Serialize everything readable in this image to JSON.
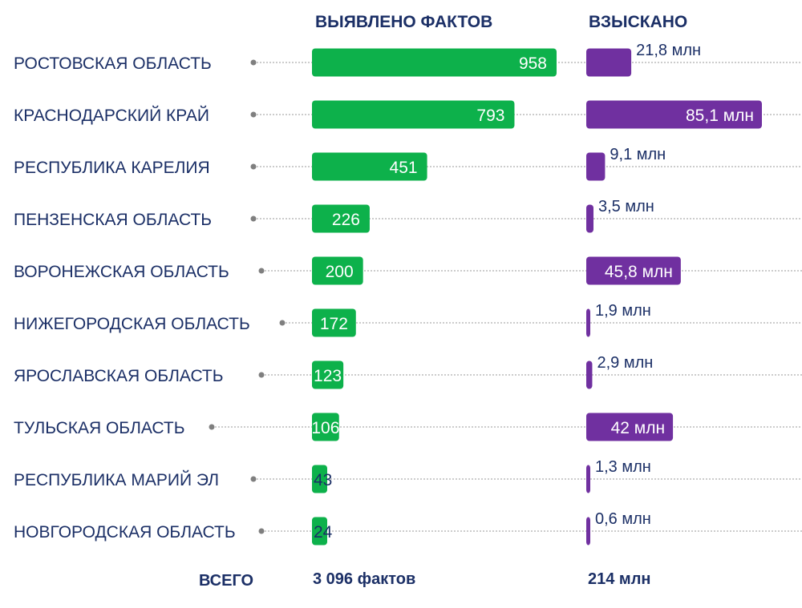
{
  "chart_data": {
    "type": "bar",
    "headers": {
      "facts": "ВЫЯВЛЕНО ФАКТОВ",
      "recovered": "ВЗЫСКАНО"
    },
    "categories": [
      "РОСТОВСКАЯ ОБЛАСТЬ",
      "КРАСНОДАРСКИЙ КРАЙ",
      "РЕСПУБЛИКА КАРЕЛИЯ",
      "ПЕНЗЕНСКАЯ ОБЛАСТЬ",
      "ВОРОНЕЖСКАЯ ОБЛАСТЬ",
      "НИЖЕГОРОДСКАЯ ОБЛАСТЬ",
      "ЯРОСЛАВСКАЯ ОБЛАСТЬ",
      "ТУЛЬСКАЯ ОБЛАСТЬ",
      "РЕСПУБЛИКА МАРИЙ ЭЛ",
      "НОВГОРОДСКАЯ ОБЛАСТЬ"
    ],
    "series": [
      {
        "name": "ВЫЯВЛЕНО ФАКТОВ",
        "color": "#0db14b",
        "values": [
          958,
          793,
          451,
          226,
          200,
          172,
          123,
          106,
          43,
          24
        ],
        "labels": [
          "958",
          "793",
          "451",
          "226",
          "200",
          "172",
          "123",
          "106",
          "43",
          "24"
        ]
      },
      {
        "name": "ВЗЫСКАНО",
        "color": "#7030a0",
        "values": [
          21.8,
          85.1,
          9.1,
          3.5,
          45.8,
          1.9,
          2.9,
          42,
          1.3,
          0.6
        ],
        "labels": [
          "21,8 млн",
          "85,1 млн",
          "9,1 млн",
          "3,5 млн",
          "45,8 млн",
          "1,9 млн",
          "2,9 млн",
          "42 млн",
          "1,3 млн",
          "0,6 млн"
        ]
      }
    ],
    "totals": {
      "label": "ВСЕГО",
      "facts": "3 096 фактов",
      "recovered": "214 млн"
    }
  }
}
